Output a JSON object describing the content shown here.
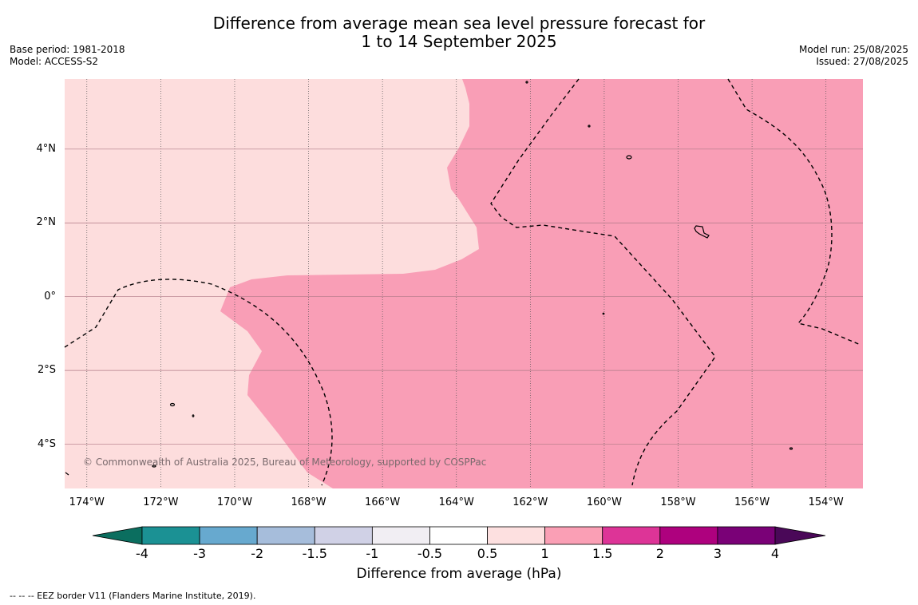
{
  "title": {
    "line1": "Difference from average mean sea level pressure forecast for",
    "line2": "1 to 14 September 2025"
  },
  "meta": {
    "base_period": "Base period: 1981-2018",
    "model": "Model: ACCESS-S2",
    "model_run": "Model run: 25/08/2025",
    "issued": "Issued: 27/08/2025"
  },
  "map": {
    "lon_range": [
      -174.6,
      -153.0
    ],
    "lat_range": [
      -5.2,
      5.9
    ],
    "lon_ticks": [
      {
        "value": -174,
        "label": "174°W"
      },
      {
        "value": -172,
        "label": "172°W"
      },
      {
        "value": -170,
        "label": "170°W"
      },
      {
        "value": -168,
        "label": "168°W"
      },
      {
        "value": -166,
        "label": "166°W"
      },
      {
        "value": -164,
        "label": "164°W"
      },
      {
        "value": -162,
        "label": "162°W"
      },
      {
        "value": -160,
        "label": "160°W"
      },
      {
        "value": -158,
        "label": "158°W"
      },
      {
        "value": -156,
        "label": "156°W"
      },
      {
        "value": -154,
        "label": "154°W"
      }
    ],
    "lat_ticks": [
      {
        "value": 4,
        "label": "4°N"
      },
      {
        "value": 2,
        "label": "2°N"
      },
      {
        "value": 0,
        "label": "0°"
      },
      {
        "value": -2,
        "label": "2°S"
      },
      {
        "value": -4,
        "label": "4°S"
      }
    ],
    "regions": [
      {
        "band": "0.5 to 1",
        "color": "#fddddd"
      },
      {
        "band": "1 to 1.5",
        "color": "#f99eb6"
      }
    ],
    "copyright": "© Commonwealth of Australia 2025, Bureau of Meteorology, supported by COSPPac"
  },
  "colorbar": {
    "title": "Difference from average (hPa)",
    "labels": [
      "-4",
      "-3",
      "-2",
      "-1.5",
      "-1",
      "-0.5",
      "0.5",
      "1",
      "1.5",
      "2",
      "3",
      "4"
    ],
    "low_extend_color": "#0b6e5f",
    "high_extend_color": "#4a0858",
    "colors": [
      "#1b9194",
      "#67a9cf",
      "#a6bddb",
      "#d0d1e6",
      "#f1eef3",
      "#ffffff",
      "#fde0e0",
      "#fa9fb5",
      "#dd3497",
      "#ae017e",
      "#7a0177"
    ]
  },
  "footnote": "--  --  -- EEZ border V11 (Flanders Marine Institute, 2019)."
}
